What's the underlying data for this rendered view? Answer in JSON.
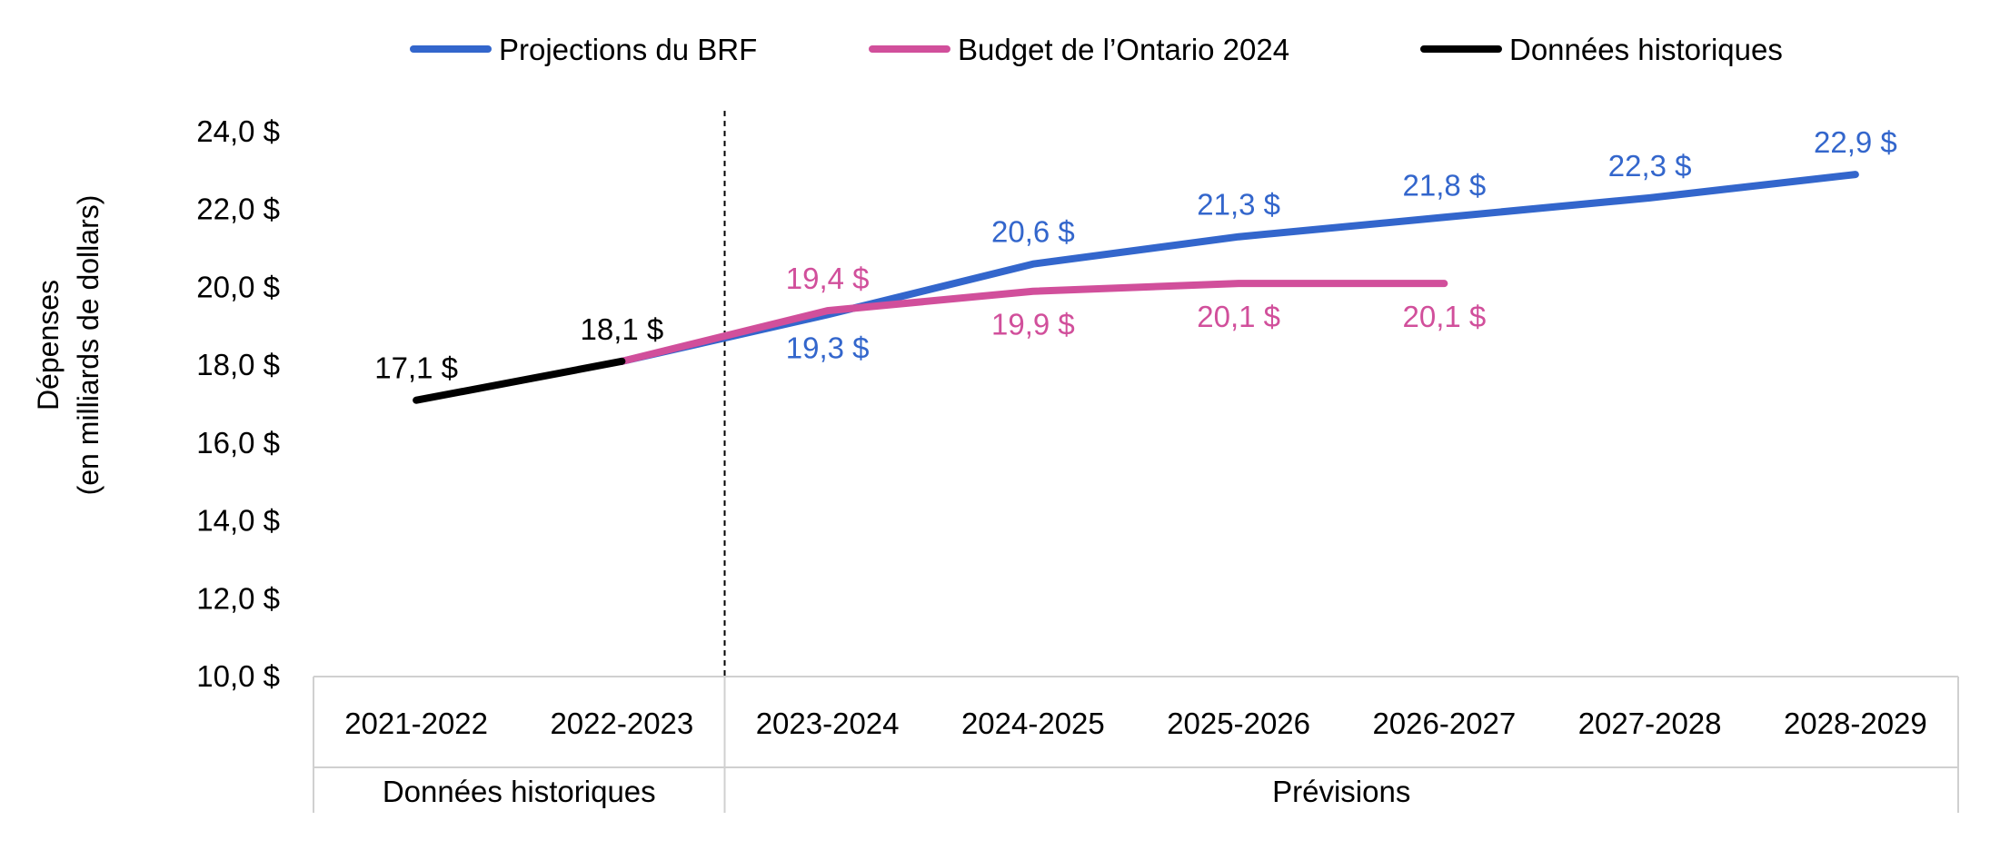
{
  "chart_data": {
    "type": "line",
    "ylabel": [
      "Dépenses",
      "(en milliards de dollars)"
    ],
    "ylim": [
      10,
      24
    ],
    "y_ticks": [
      {
        "value": 10,
        "label": "10,0 $"
      },
      {
        "value": 12,
        "label": "12,0 $"
      },
      {
        "value": 14,
        "label": "14,0 $"
      },
      {
        "value": 16,
        "label": "16,0 $"
      },
      {
        "value": 18,
        "label": "18,0 $"
      },
      {
        "value": 20,
        "label": "20,0 $"
      },
      {
        "value": 22,
        "label": "22,0 $"
      },
      {
        "value": 24,
        "label": "24,0 $"
      }
    ],
    "categories": [
      "2021-2022",
      "2022-2023",
      "2023-2024",
      "2024-2025",
      "2025-2026",
      "2026-2027",
      "2027-2028",
      "2028-2029"
    ],
    "category_groups": [
      {
        "label": "Données historiques",
        "span": [
          0,
          1
        ]
      },
      {
        "label": "Prévisions",
        "span": [
          2,
          7
        ]
      }
    ],
    "divider_after_index": 1,
    "legend_position": "top",
    "grid": false,
    "series": [
      {
        "key": "brf",
        "name": "Projections du BRF",
        "color": "#3366CC",
        "values": [
          null,
          18.1,
          19.3,
          20.6,
          21.3,
          21.8,
          22.3,
          22.9
        ],
        "labels": [
          null,
          null,
          "19,3 $",
          "20,6 $",
          "21,3 $",
          "21,8 $",
          "22,3 $",
          "22,9 $"
        ],
        "label_position": [
          "none",
          "none",
          "below",
          "above",
          "above",
          "above",
          "above",
          "above"
        ]
      },
      {
        "key": "budget",
        "name": "Budget de l’Ontario 2024",
        "color": "#D14F9B",
        "values": [
          null,
          18.1,
          19.4,
          19.9,
          20.1,
          20.1,
          null,
          null
        ],
        "labels": [
          null,
          null,
          "19,4 $",
          "19,9 $",
          "20,1 $",
          "20,1 $",
          null,
          null
        ],
        "label_position": [
          "none",
          "none",
          "above",
          "below",
          "below",
          "below",
          "none",
          "none"
        ]
      },
      {
        "key": "hist",
        "name": "Données historiques",
        "color": "#000000",
        "values": [
          17.1,
          18.1,
          null,
          null,
          null,
          null,
          null,
          null
        ],
        "labels": [
          "17,1 $",
          "18,1 $",
          null,
          null,
          null,
          null,
          null,
          null
        ],
        "label_position": [
          "above",
          "above",
          "none",
          "none",
          "none",
          "none",
          "none",
          "none"
        ]
      }
    ]
  }
}
